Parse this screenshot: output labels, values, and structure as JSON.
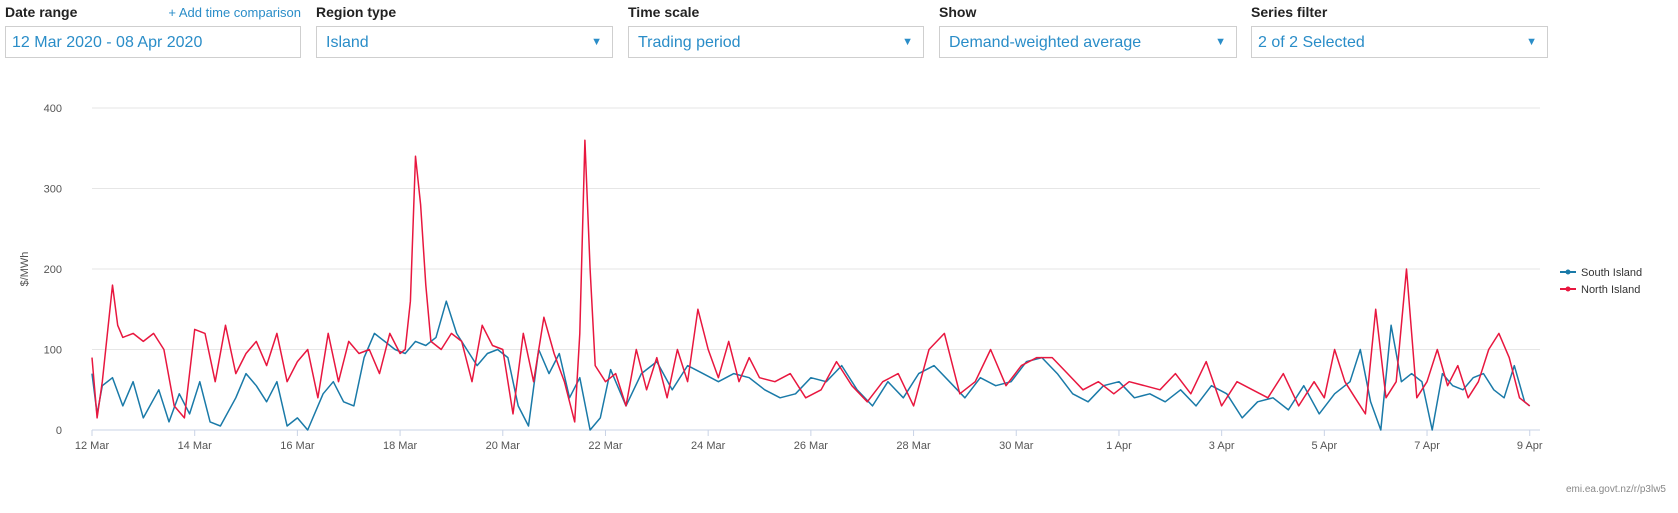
{
  "filters": {
    "date_range": {
      "label": "Date range",
      "value": "12 Mar 2020 - 08 Apr 2020",
      "add_link": "+ Add time comparison"
    },
    "region_type": {
      "label": "Region type",
      "value": "Island",
      "caret": "▼"
    },
    "time_scale": {
      "label": "Time scale",
      "value": "Trading period",
      "caret": "▼"
    },
    "show": {
      "label": "Show",
      "value": "Demand-weighted average",
      "caret": "▼"
    },
    "series_filter": {
      "label": "Series filter",
      "value": "2 of 2 Selected",
      "caret": "▼"
    }
  },
  "footer": {
    "source_link": "emi.ea.govt.nz/r/p3lw5"
  },
  "colors": {
    "accent": "#2a8dc8",
    "south": "#1a7aa8",
    "north": "#e8173f",
    "grid": "#e6e6e6",
    "axis": "#c9d3e6"
  },
  "chart_data": {
    "type": "line",
    "ylabel": "$/MWh",
    "xlabel": "",
    "ylim": [
      0,
      400
    ],
    "yticks": [
      0,
      100,
      200,
      300,
      400
    ],
    "xlim": [
      12,
      40.2
    ],
    "x_unit": "day index (12 = 12 Mar 2020, 32 = 1 Apr 2020)",
    "xticks": [
      {
        "x": 12,
        "label": "12 Mar"
      },
      {
        "x": 14,
        "label": "14 Mar"
      },
      {
        "x": 16,
        "label": "16 Mar"
      },
      {
        "x": 18,
        "label": "18 Mar"
      },
      {
        "x": 20,
        "label": "20 Mar"
      },
      {
        "x": 22,
        "label": "22 Mar"
      },
      {
        "x": 24,
        "label": "24 Mar"
      },
      {
        "x": 26,
        "label": "26 Mar"
      },
      {
        "x": 28,
        "label": "28 Mar"
      },
      {
        "x": 30,
        "label": "30 Mar"
      },
      {
        "x": 32,
        "label": "1 Apr"
      },
      {
        "x": 34,
        "label": "3 Apr"
      },
      {
        "x": 36,
        "label": "5 Apr"
      },
      {
        "x": 38,
        "label": "7 Apr"
      },
      {
        "x": 40,
        "label": "9 Apr"
      }
    ],
    "legend_position": "right",
    "series": [
      {
        "name": "South Island",
        "color": "#1a7aa8",
        "x": [
          12.0,
          12.1,
          12.2,
          12.4,
          12.6,
          12.8,
          13.0,
          13.3,
          13.5,
          13.7,
          13.9,
          14.1,
          14.3,
          14.5,
          14.8,
          15.0,
          15.2,
          15.4,
          15.6,
          15.8,
          16.0,
          16.2,
          16.5,
          16.7,
          16.9,
          17.1,
          17.3,
          17.5,
          17.7,
          17.9,
          18.1,
          18.3,
          18.5,
          18.7,
          18.9,
          19.1,
          19.3,
          19.5,
          19.7,
          19.9,
          20.1,
          20.3,
          20.5,
          20.7,
          20.9,
          21.1,
          21.3,
          21.5,
          21.7,
          21.9,
          22.1,
          22.4,
          22.7,
          23.0,
          23.3,
          23.6,
          23.9,
          24.2,
          24.5,
          24.8,
          25.1,
          25.4,
          25.7,
          26.0,
          26.3,
          26.6,
          26.9,
          27.2,
          27.5,
          27.8,
          28.1,
          28.4,
          28.7,
          29.0,
          29.3,
          29.6,
          29.9,
          30.2,
          30.5,
          30.8,
          31.1,
          31.4,
          31.7,
          32.0,
          32.3,
          32.6,
          32.9,
          33.2,
          33.5,
          33.8,
          34.1,
          34.4,
          34.7,
          35.0,
          35.3,
          35.6,
          35.9,
          36.2,
          36.5,
          36.7,
          36.9,
          37.1,
          37.3,
          37.5,
          37.7,
          37.9,
          38.1,
          38.3,
          38.5,
          38.7,
          38.9,
          39.1,
          39.3,
          39.5,
          39.7,
          39.9,
          40.0
        ],
        "y": [
          70,
          20,
          55,
          65,
          30,
          60,
          15,
          50,
          10,
          45,
          20,
          60,
          10,
          5,
          40,
          70,
          55,
          35,
          60,
          5,
          15,
          0,
          45,
          60,
          35,
          30,
          90,
          120,
          110,
          100,
          95,
          110,
          105,
          115,
          160,
          120,
          100,
          80,
          95,
          100,
          90,
          30,
          5,
          100,
          70,
          95,
          40,
          65,
          0,
          15,
          75,
          30,
          70,
          85,
          50,
          80,
          70,
          60,
          70,
          65,
          50,
          40,
          45,
          65,
          60,
          80,
          50,
          30,
          60,
          40,
          70,
          80,
          60,
          40,
          65,
          55,
          60,
          85,
          90,
          70,
          45,
          35,
          55,
          60,
          40,
          45,
          35,
          50,
          30,
          55,
          45,
          15,
          35,
          40,
          25,
          55,
          20,
          45,
          60,
          100,
          35,
          0,
          130,
          60,
          70,
          60,
          0,
          70,
          55,
          50,
          65,
          70,
          50,
          40,
          80,
          35,
          30
        ]
      },
      {
        "name": "North Island",
        "color": "#e8173f",
        "x": [
          12.0,
          12.1,
          12.2,
          12.3,
          12.4,
          12.5,
          12.6,
          12.8,
          13.0,
          13.2,
          13.4,
          13.6,
          13.8,
          14.0,
          14.2,
          14.4,
          14.6,
          14.8,
          15.0,
          15.2,
          15.4,
          15.6,
          15.8,
          16.0,
          16.2,
          16.4,
          16.6,
          16.8,
          17.0,
          17.2,
          17.4,
          17.6,
          17.8,
          18.0,
          18.1,
          18.2,
          18.3,
          18.4,
          18.5,
          18.6,
          18.8,
          19.0,
          19.2,
          19.4,
          19.6,
          19.8,
          20.0,
          20.2,
          20.4,
          20.6,
          20.8,
          21.0,
          21.2,
          21.4,
          21.5,
          21.6,
          21.7,
          21.8,
          22.0,
          22.2,
          22.4,
          22.6,
          22.8,
          23.0,
          23.2,
          23.4,
          23.6,
          23.8,
          24.0,
          24.2,
          24.4,
          24.6,
          24.8,
          25.0,
          25.3,
          25.6,
          25.9,
          26.2,
          26.5,
          26.8,
          27.1,
          27.4,
          27.7,
          28.0,
          28.3,
          28.6,
          28.9,
          29.2,
          29.5,
          29.8,
          30.1,
          30.4,
          30.7,
          31.0,
          31.3,
          31.6,
          31.9,
          32.2,
          32.5,
          32.8,
          33.1,
          33.4,
          33.7,
          34.0,
          34.3,
          34.6,
          34.9,
          35.2,
          35.5,
          35.8,
          36.0,
          36.2,
          36.4,
          36.6,
          36.8,
          37.0,
          37.2,
          37.4,
          37.6,
          37.8,
          38.0,
          38.2,
          38.4,
          38.6,
          38.8,
          39.0,
          39.2,
          39.4,
          39.6,
          39.8,
          40.0
        ],
        "y": [
          90,
          15,
          60,
          120,
          180,
          130,
          115,
          120,
          110,
          120,
          100,
          30,
          15,
          125,
          120,
          60,
          130,
          70,
          95,
          110,
          80,
          120,
          60,
          85,
          100,
          40,
          120,
          60,
          110,
          95,
          100,
          70,
          120,
          95,
          100,
          160,
          340,
          280,
          180,
          110,
          100,
          120,
          110,
          60,
          130,
          105,
          100,
          20,
          120,
          60,
          140,
          95,
          60,
          10,
          120,
          360,
          200,
          80,
          60,
          70,
          30,
          100,
          50,
          90,
          40,
          100,
          60,
          150,
          100,
          65,
          110,
          60,
          90,
          65,
          60,
          70,
          40,
          50,
          85,
          55,
          35,
          60,
          70,
          30,
          100,
          120,
          45,
          60,
          100,
          55,
          80,
          90,
          90,
          70,
          50,
          60,
          45,
          60,
          55,
          50,
          70,
          45,
          85,
          30,
          60,
          50,
          40,
          70,
          30,
          60,
          40,
          100,
          60,
          40,
          20,
          150,
          40,
          60,
          200,
          40,
          60,
          100,
          55,
          80,
          40,
          60,
          100,
          120,
          90,
          40,
          30
        ]
      }
    ]
  }
}
